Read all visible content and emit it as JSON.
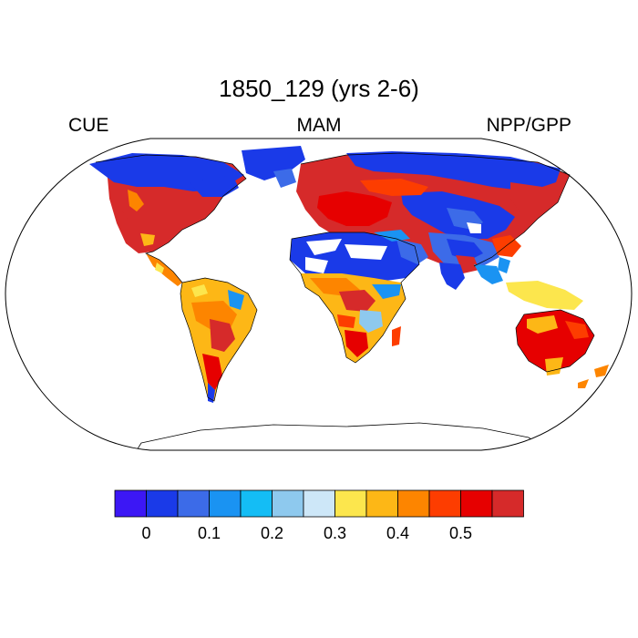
{
  "figure": {
    "title": "1850_129 (yrs 2-6)",
    "left_label": "CUE",
    "center_label": "MAM",
    "right_label": "NPP/GPP"
  },
  "projection": "Robinson",
  "colorbar": {
    "colors": [
      "#3c17f5",
      "#1a3ae8",
      "#3c6be8",
      "#1a93f2",
      "#14bdf5",
      "#8ec9ee",
      "#cde7f8",
      "#fce64d",
      "#fdb716",
      "#fd8500",
      "#fd3d00",
      "#e60000",
      "#d62a2a"
    ],
    "tick_labels": [
      "0",
      "0.1",
      "0.2",
      "0.3",
      "0.4",
      "0.5"
    ],
    "tick_values": [
      0,
      0.1,
      0.2,
      0.3,
      0.4,
      0.5
    ]
  },
  "legend": {
    "no_data_color": "#ffffff"
  }
}
